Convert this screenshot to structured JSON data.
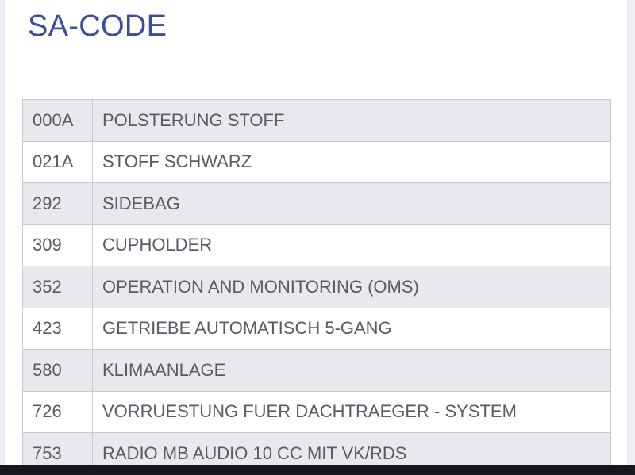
{
  "header": {
    "title": "SA-CODE"
  },
  "table": {
    "rows": [
      [
        "000A",
        "POLSTERUNG STOFF"
      ],
      [
        "021A",
        "STOFF SCHWARZ"
      ],
      [
        "292",
        "SIDEBAG"
      ],
      [
        "309",
        "CUPHOLDER"
      ],
      [
        "352",
        "OPERATION AND MONITORING (OMS)"
      ],
      [
        "423",
        "GETRIEBE AUTOMATISCH 5-GANG"
      ],
      [
        "580",
        "KLIMAANLAGE"
      ],
      [
        "726",
        "VORRUESTUNG FUER DACHTRAEGER - SYSTEM"
      ],
      [
        "753",
        "RADIO MB AUDIO 10 CC MIT VK/RDS"
      ]
    ]
  }
}
